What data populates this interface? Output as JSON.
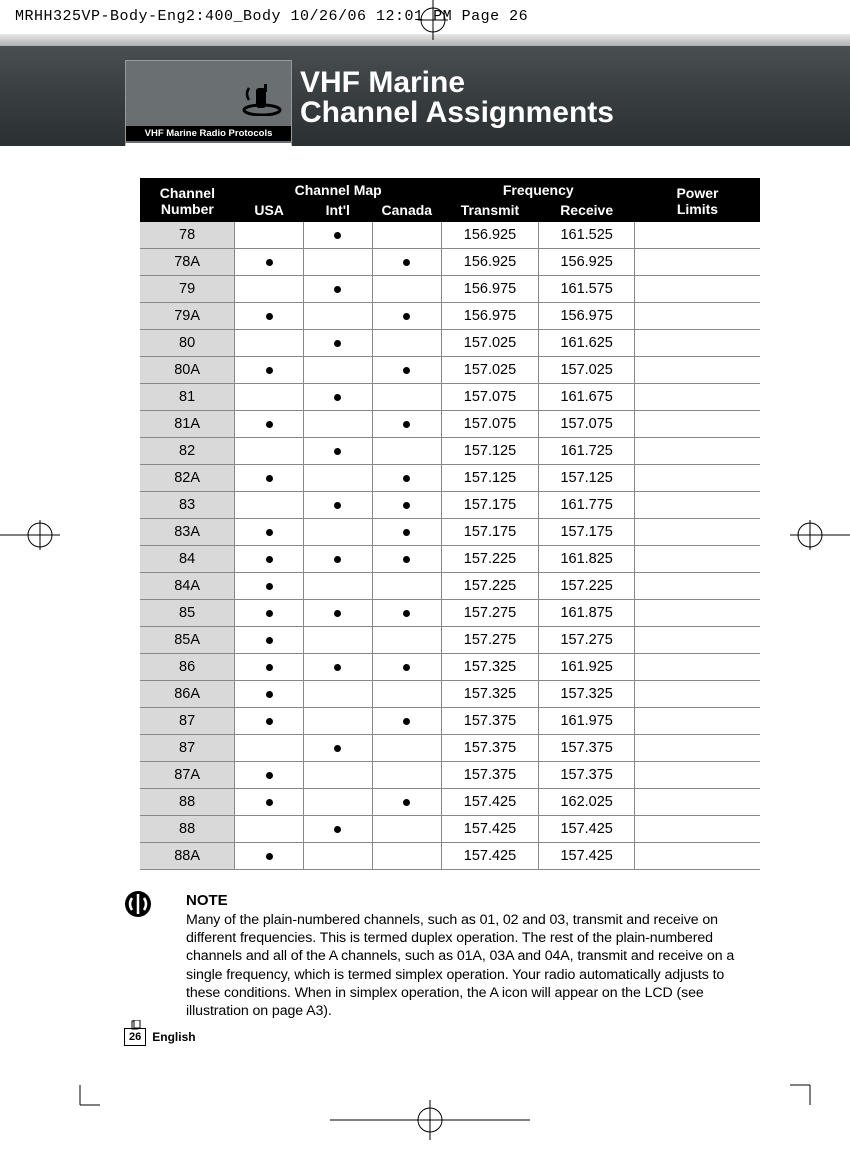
{
  "print_header": "MRHH325VP-Body-Eng2:400_Body  10/26/06  12:01 PM  Page 26",
  "section_tab_label": "VHF Marine Radio Protocols",
  "title": {
    "line1": "VHF Marine",
    "line2": "Channel Assignments"
  },
  "table": {
    "headers": {
      "channel_number": "Channel\nNumber",
      "channel_map": "Channel Map",
      "usa": "USA",
      "intl": "Int'l",
      "canada": "Canada",
      "frequency": "Frequency",
      "transmit": "Transmit",
      "receive": "Receive",
      "power_limits": "Power\nLimits"
    },
    "rows": [
      {
        "ch": "78",
        "usa": false,
        "intl": true,
        "canada": false,
        "tx": "156.925",
        "rx": "161.525",
        "power": "",
        "tall": false
      },
      {
        "ch": "78A",
        "usa": true,
        "intl": false,
        "canada": true,
        "tx": "156.925",
        "rx": "156.925",
        "power": "",
        "tall": false
      },
      {
        "ch": "79",
        "usa": false,
        "intl": true,
        "canada": false,
        "tx": "156.975",
        "rx": "161.575",
        "power": "",
        "tall": false
      },
      {
        "ch": "79A",
        "usa": true,
        "intl": false,
        "canada": true,
        "tx": "156.975",
        "rx": "156.975",
        "power": "",
        "tall": false
      },
      {
        "ch": "80",
        "usa": false,
        "intl": true,
        "canada": false,
        "tx": "157.025",
        "rx": "161.625",
        "power": "",
        "tall": false
      },
      {
        "ch": "80A",
        "usa": true,
        "intl": false,
        "canada": true,
        "tx": "157.025",
        "rx": "157.025",
        "power": "",
        "tall": false
      },
      {
        "ch": "81",
        "usa": false,
        "intl": true,
        "canada": false,
        "tx": "157.075",
        "rx": "161.675",
        "power": "",
        "tall": false
      },
      {
        "ch": "81A",
        "usa": true,
        "intl": false,
        "canada": true,
        "tx": "157.075",
        "rx": "157.075",
        "power": "",
        "tall": false
      },
      {
        "ch": "82",
        "usa": false,
        "intl": true,
        "canada": false,
        "tx": "157.125",
        "rx": "161.725",
        "power": "",
        "tall": false
      },
      {
        "ch": "82A",
        "usa": true,
        "intl": false,
        "canada": true,
        "tx": "157.125",
        "rx": "157.125",
        "power": "",
        "tall": false
      },
      {
        "ch": "83",
        "usa": false,
        "intl": true,
        "canada": true,
        "tx": "157.175",
        "rx": "161.775",
        "power": "",
        "tall": false
      },
      {
        "ch": "83A",
        "usa": true,
        "intl": false,
        "canada": true,
        "tx": "157.175",
        "rx": "157.175",
        "power": "",
        "tall": false
      },
      {
        "ch": "84",
        "usa": true,
        "intl": true,
        "canada": true,
        "tx": "157.225",
        "rx": "161.825",
        "power": "",
        "tall": false
      },
      {
        "ch": "84A",
        "usa": true,
        "intl": false,
        "canada": false,
        "tx": "157.225",
        "rx": "157.225",
        "power": "",
        "tall": false
      },
      {
        "ch": "85",
        "usa": true,
        "intl": true,
        "canada": true,
        "tx": "157.275",
        "rx": "161.875",
        "power": "",
        "tall": false
      },
      {
        "ch": "85A",
        "usa": true,
        "intl": false,
        "canada": false,
        "tx": "157.275",
        "rx": "157.275",
        "power": "",
        "tall": false
      },
      {
        "ch": "86",
        "usa": true,
        "intl": true,
        "canada": true,
        "tx": "157.325",
        "rx": "161.925",
        "power": "",
        "tall": false
      },
      {
        "ch": "86A",
        "usa": true,
        "intl": false,
        "canada": false,
        "tx": "157.325",
        "rx": "157.325",
        "power": "",
        "tall": false
      },
      {
        "ch": "87",
        "usa": true,
        "intl": false,
        "canada": true,
        "tx": "157.375",
        "rx": "161.975",
        "power": "",
        "tall": false
      },
      {
        "ch": "87",
        "usa": false,
        "intl": true,
        "canada": false,
        "tx": "157.375",
        "rx": "157.375",
        "power": "",
        "tall": false
      },
      {
        "ch": "87A",
        "usa": true,
        "intl": false,
        "canada": false,
        "tx": "157.375",
        "rx": "157.375",
        "power": "",
        "tall": false
      },
      {
        "ch": "88",
        "usa": true,
        "intl": false,
        "canada": true,
        "tx": "157.425",
        "rx": "162.025",
        "power": "",
        "tall": true
      },
      {
        "ch": "88",
        "usa": false,
        "intl": true,
        "canada": false,
        "tx": "157.425",
        "rx": "157.425",
        "power": "",
        "tall": false
      },
      {
        "ch": "88A",
        "usa": true,
        "intl": false,
        "canada": false,
        "tx": "157.425",
        "rx": "157.425",
        "power": "",
        "tall": false
      }
    ]
  },
  "note": {
    "title": "NOTE",
    "text": "Many of the plain-numbered channels, such as 01, 02 and 03, transmit and receive on different frequencies. This is termed duplex operation. The rest of the plain-numbered channels and all of the A channels, such as 01A, 03A and 04A, transmit and receive on a single frequency, which is termed simplex operation. Your radio automatically adjusts to these conditions. When in simplex operation, the A icon will appear on the LCD (see illustration on page A3)."
  },
  "footer": {
    "page": "26",
    "language": "English"
  }
}
